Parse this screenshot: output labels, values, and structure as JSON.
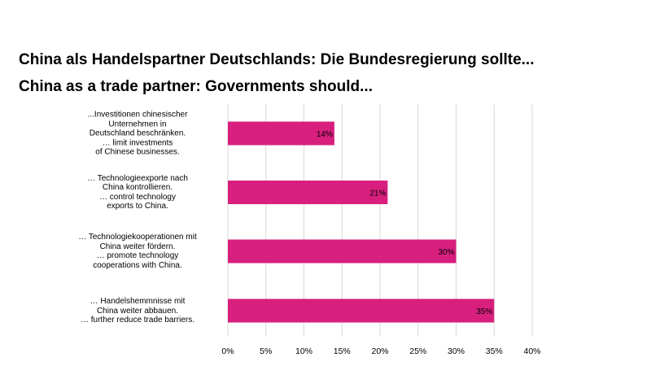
{
  "titles": {
    "line1": "China als Handelspartner Deutschlands: Die Bundesregierung sollte...",
    "line2": "China as a trade partner: Governments should..."
  },
  "colors": {
    "bar": "#d81f7e",
    "grid": "#d9d9d9"
  },
  "chart_data": {
    "type": "bar",
    "orientation": "horizontal",
    "categories": [
      {
        "lines": [
          "...Investitionen chinesischer",
          "Unternehmen in",
          "Deutschland beschränken.",
          "… limit investments",
          "of Chinese businesses."
        ]
      },
      {
        "lines": [
          "… Technologieexporte nach",
          "China kontrollieren.",
          "… control technology",
          "exports to China."
        ]
      },
      {
        "lines": [
          "… Technologiekooperationen mit",
          "China weiter fördern.",
          "… promote technology",
          "cooperations with China."
        ]
      },
      {
        "lines": [
          "… Handelshemmnisse mit",
          "China weiter abbauen.",
          "… further reduce trade barriers."
        ]
      }
    ],
    "values": [
      14,
      21,
      30,
      35
    ],
    "value_labels": [
      "14%",
      "21%",
      "30%",
      "35%"
    ],
    "xlim": [
      0,
      40
    ],
    "xticks": [
      0,
      5,
      10,
      15,
      20,
      25,
      30,
      35,
      40
    ],
    "xtick_labels": [
      "0%",
      "5%",
      "10%",
      "15%",
      "20%",
      "25%",
      "30%",
      "35%",
      "40%"
    ],
    "grid": true,
    "legend": "none"
  }
}
